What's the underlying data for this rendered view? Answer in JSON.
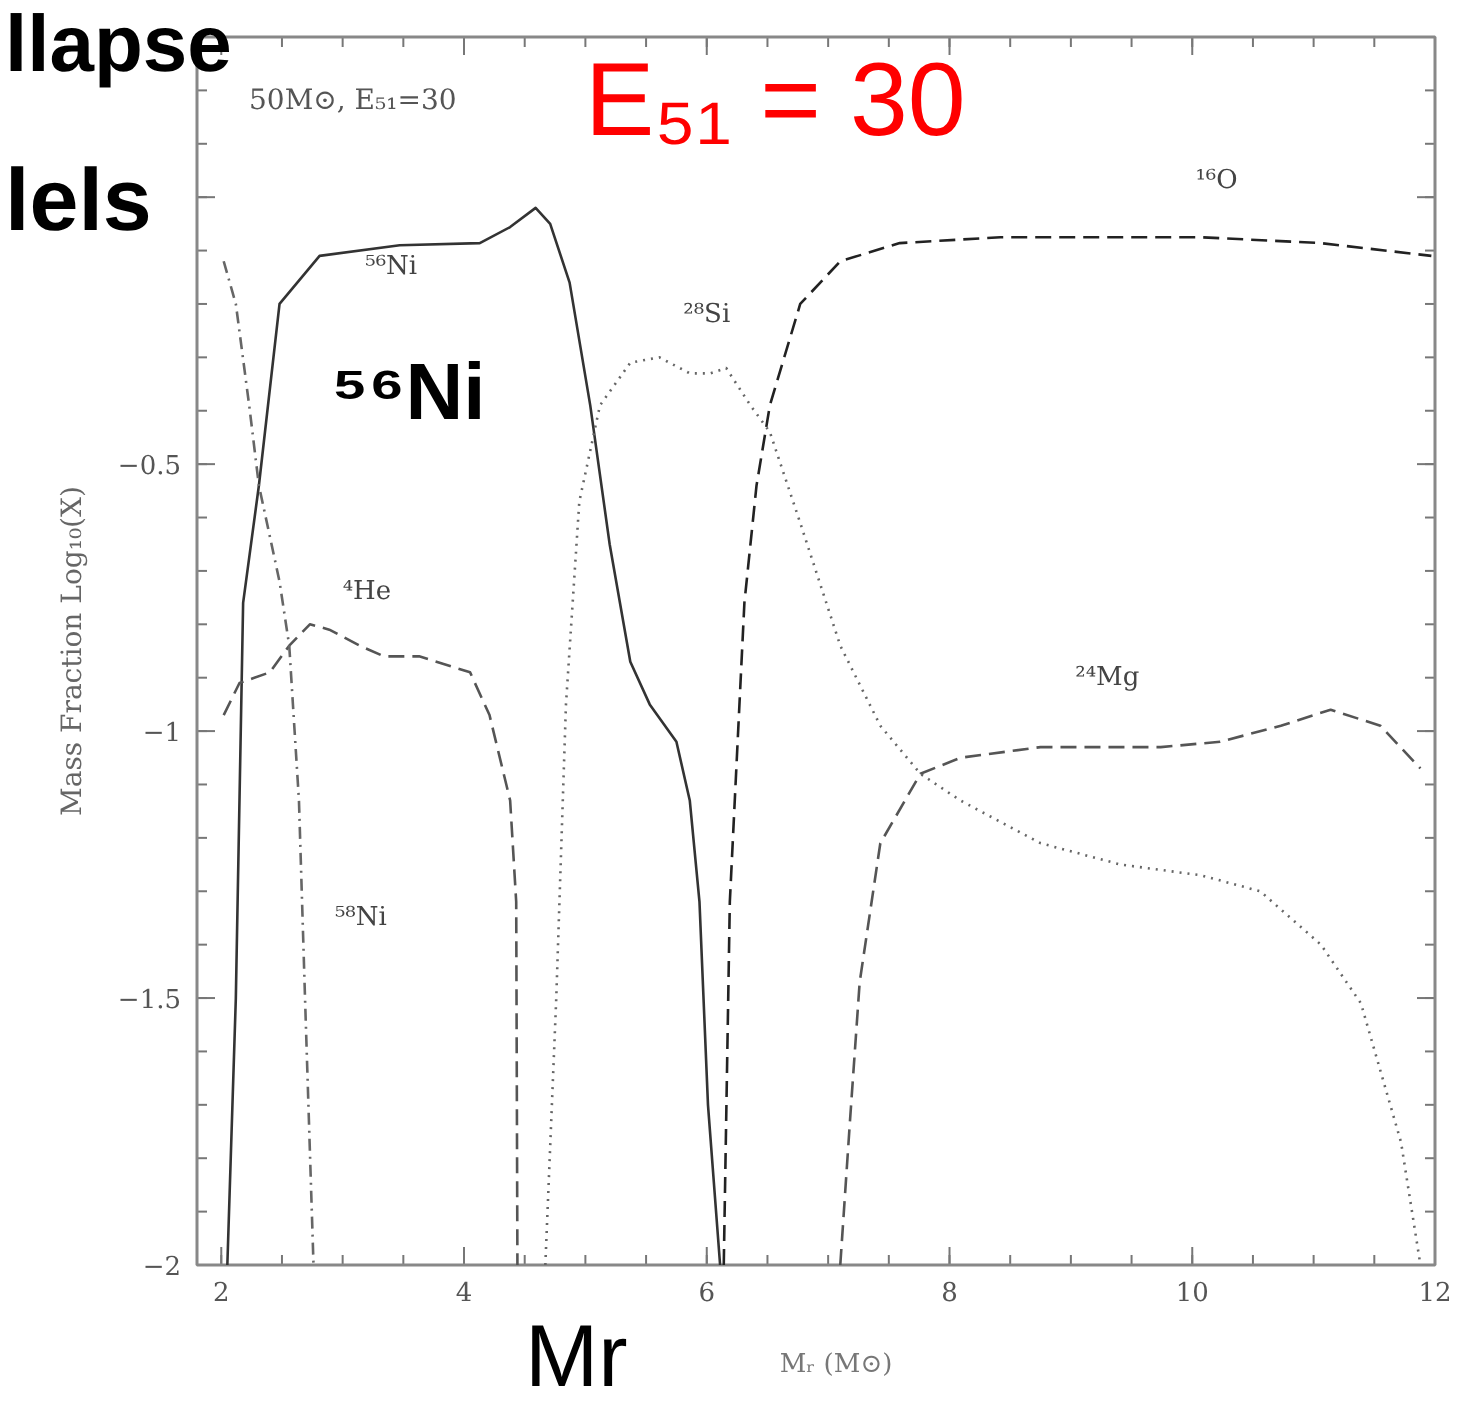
{
  "chart_data": {
    "type": "line",
    "xlabel": "Mᵣ (M⊙)",
    "ylabel": "Mass Fraction Log₁₀(X)",
    "xlim": [
      1.8,
      12
    ],
    "ylim": [
      -2,
      0.3
    ],
    "xticks": [
      2,
      4,
      6,
      8,
      10,
      12
    ],
    "yticks": [
      {
        "value": 0,
        "label": null
      },
      {
        "value": -0.5,
        "label": "−0.5"
      },
      {
        "value": -1,
        "label": "−1"
      },
      {
        "value": -1.5,
        "label": "−1.5"
      },
      {
        "value": -2,
        "label": "−2"
      }
    ],
    "grid": false,
    "series": [
      {
        "name": "⁵⁶Ni",
        "color": "#333333",
        "line_style": "solid",
        "x": [
          2.05,
          2.12,
          2.18,
          2.31,
          2.48,
          2.81,
          3.47,
          4.13,
          4.38,
          4.59,
          4.71,
          4.87,
          5.04,
          5.2,
          5.37,
          5.53,
          5.75,
          5.86,
          5.94,
          6.01,
          6.11
        ],
        "values": [
          -2,
          -1.5,
          -0.76,
          -0.54,
          -0.2,
          -0.11,
          -0.09,
          -0.086,
          -0.056,
          -0.02,
          -0.05,
          -0.16,
          -0.39,
          -0.65,
          -0.87,
          -0.95,
          -1.02,
          -1.13,
          -1.32,
          -1.7,
          -2
        ]
      },
      {
        "name": "¹⁶O",
        "color": "#222222",
        "line_style": "dashed",
        "x": [
          6.14,
          6.19,
          6.31,
          6.41,
          6.52,
          6.77,
          7.1,
          7.59,
          8.42,
          10.07,
          11.06,
          11.97
        ],
        "values": [
          -2,
          -1.32,
          -0.76,
          -0.54,
          -0.39,
          -0.2,
          -0.12,
          -0.086,
          -0.075,
          -0.075,
          -0.086,
          -0.11
        ]
      },
      {
        "name": "²⁸Si",
        "color": "#666666",
        "line_style": "dotted",
        "x": [
          4.67,
          4.76,
          4.84,
          4.95,
          5.12,
          5.37,
          5.61,
          5.86,
          6.03,
          6.16,
          6.36,
          6.52,
          6.77,
          7.1,
          7.43,
          7.76,
          8.09,
          8.75,
          9.41,
          10.07,
          10.56,
          11.06,
          11.39,
          11.72,
          11.88
        ],
        "values": [
          -2,
          -1.5,
          -0.95,
          -0.57,
          -0.39,
          -0.31,
          -0.3,
          -0.33,
          -0.33,
          -0.32,
          -0.39,
          -0.44,
          -0.61,
          -0.84,
          -0.99,
          -1.08,
          -1.13,
          -1.21,
          -1.25,
          -1.27,
          -1.3,
          -1.4,
          -1.51,
          -1.77,
          -2
        ]
      },
      {
        "name": "⁴He",
        "color": "#555555",
        "line_style": "dashed",
        "x": [
          2.02,
          2.15,
          2.4,
          2.56,
          2.73,
          2.89,
          3.14,
          3.34,
          3.63,
          4.05,
          4.21,
          4.38,
          4.43,
          4.44
        ],
        "values": [
          -0.97,
          -0.91,
          -0.89,
          -0.84,
          -0.8,
          -0.81,
          -0.84,
          -0.86,
          -0.86,
          -0.89,
          -0.97,
          -1.13,
          -1.32,
          -2
        ]
      },
      {
        "name": "²⁴Mg",
        "color": "#555555",
        "line_style": "dashed",
        "x": [
          7.1,
          7.18,
          7.26,
          7.43,
          7.76,
          8.09,
          8.75,
          9.74,
          10.23,
          10.73,
          11.14,
          11.55,
          11.88
        ],
        "values": [
          -2,
          -1.73,
          -1.47,
          -1.21,
          -1.08,
          -1.05,
          -1.03,
          -1.03,
          -1.02,
          -0.99,
          -0.96,
          -0.99,
          -1.07
        ]
      },
      {
        "name": "⁵⁸Ni",
        "color": "#666666",
        "line_style": "dashdot",
        "x": [
          2.02,
          2.12,
          2.23,
          2.31,
          2.48,
          2.56,
          2.64,
          2.69,
          2.76
        ],
        "values": [
          -0.12,
          -0.2,
          -0.39,
          -0.54,
          -0.72,
          -0.84,
          -1.13,
          -1.5,
          -2
        ]
      }
    ],
    "annotations": [
      "50M⊙, E₅₁=30",
      "llapse",
      "lels",
      "E₅₁ = 30",
      "⁵⁶Ni",
      "Mr"
    ]
  }
}
